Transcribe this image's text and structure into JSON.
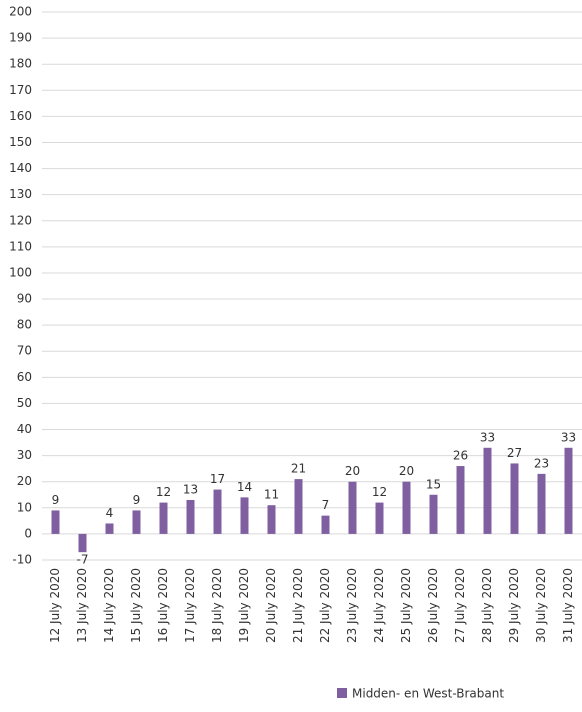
{
  "chart_data": {
    "type": "bar",
    "categories": [
      "12 July 2020",
      "13 July 2020",
      "14 July 2020",
      "15 July 2020",
      "16 July 2020",
      "17 July 2020",
      "18 July 2020",
      "19 July 2020",
      "20 July 2020",
      "21 July 2020",
      "22 July 2020",
      "23 July 2020",
      "24 July 2020",
      "25 July 2020",
      "26 July 2020",
      "27 July 2020",
      "28 July 2020",
      "29 July 2020",
      "30 July 2020",
      "31 July 2020"
    ],
    "series": [
      {
        "name": "Midden- en West-Brabant",
        "color": "#7f5fa0",
        "values": [
          9,
          -7,
          4,
          9,
          12,
          13,
          17,
          14,
          11,
          21,
          7,
          20,
          12,
          20,
          15,
          26,
          33,
          27,
          23,
          33
        ]
      }
    ],
    "ylim": [
      -10,
      200
    ],
    "yticks": [
      -10,
      0,
      10,
      20,
      30,
      40,
      50,
      60,
      70,
      80,
      90,
      100,
      110,
      120,
      130,
      140,
      150,
      160,
      170,
      180,
      190,
      200
    ],
    "grid": true,
    "legend": "bottom"
  }
}
